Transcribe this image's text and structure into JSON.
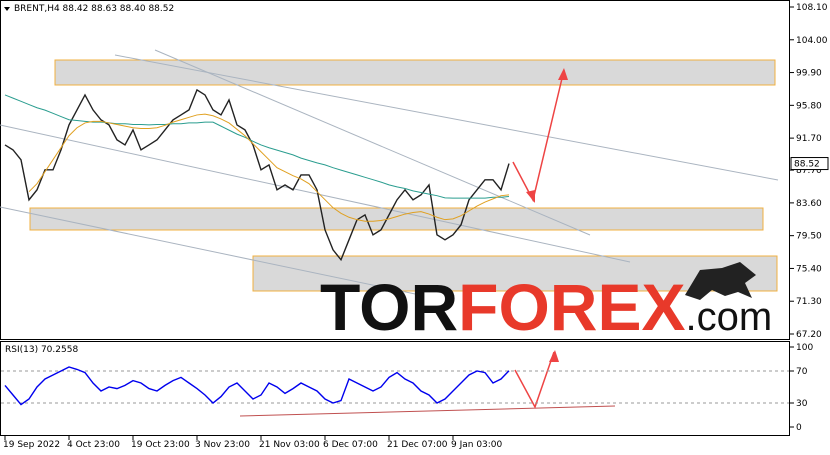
{
  "chart_data": [
    {
      "type": "line",
      "title": "BRENT,H4 88.42 88.63 88.40 88.52",
      "categories": [
        "19 Sep 2022",
        null,
        null,
        null,
        null,
        null,
        null,
        null,
        "4 Oct 23:00",
        null,
        null,
        null,
        null,
        null,
        null,
        null,
        "19 Oct 23:00",
        null,
        null,
        null,
        null,
        null,
        null,
        null,
        "3 Nov 23:00",
        null,
        null,
        null,
        null,
        null,
        null,
        null,
        "21 Nov 03:00",
        null,
        null,
        null,
        null,
        null,
        null,
        null,
        "6 Dec 07:00",
        null,
        null,
        null,
        null,
        null,
        null,
        null,
        "21 Dec 07:00",
        null,
        null,
        null,
        null,
        null,
        null,
        null,
        "9 Jan 03:00",
        null,
        null,
        null,
        null,
        null,
        null,
        null
      ],
      "series": [
        {
          "color": "#222222",
          "values": [
            90.85,
            90.23,
            88.98,
            83.98,
            85.23,
            87.73,
            87.73,
            90.23,
            93.35,
            95.23,
            97.1,
            95.23,
            93.98,
            93.35,
            91.48,
            90.85,
            92.73,
            90.23,
            90.85,
            91.48,
            92.73,
            93.98,
            94.6,
            95.23,
            97.73,
            97.1,
            95.23,
            94.6,
            96.48,
            93.35,
            92.73,
            90.85,
            87.73,
            88.35,
            85.23,
            85.85,
            85.23,
            87.1,
            87.1,
            85.23,
            80.23,
            77.73,
            76.48,
            78.98,
            81.48,
            82.1,
            79.6,
            80.23,
            82.1,
            83.98,
            85.23,
            83.98,
            84.6,
            85.85,
            79.6,
            78.98,
            79.6,
            80.85,
            83.98,
            85.23,
            86.48,
            86.48,
            85.23,
            88.52
          ]
        },
        {
          "color": "#2a9d8f",
          "values": [
            97.1,
            96.7,
            96.3,
            95.9,
            95.5,
            95.2,
            94.8,
            94.4,
            94.0,
            93.9,
            93.8,
            93.7,
            93.7,
            93.6,
            93.5,
            93.5,
            93.4,
            93.4,
            93.35,
            93.4,
            93.4,
            93.5,
            93.5,
            93.6,
            93.6,
            93.7,
            93.7,
            93.2,
            92.7,
            92.2,
            91.8,
            91.3,
            90.85,
            90.5,
            90.2,
            89.9,
            89.6,
            89.2,
            88.9,
            88.6,
            88.35,
            88.0,
            87.7,
            87.4,
            87.1,
            86.8,
            86.5,
            86.2,
            85.85,
            85.6,
            85.4,
            85.1,
            84.9,
            84.7,
            84.5,
            84.23,
            84.2,
            84.2,
            84.2,
            84.2,
            84.2,
            84.3,
            84.3,
            84.4
          ]
        },
        {
          "color": "#e0a020",
          "values": [
            null,
            null,
            null,
            85.0,
            86.0,
            87.5,
            89.0,
            90.5,
            92.0,
            93.0,
            93.6,
            93.8,
            93.8,
            93.6,
            93.4,
            93.2,
            93.0,
            92.9,
            92.9,
            93.0,
            93.3,
            93.7,
            94.0,
            94.3,
            94.6,
            94.7,
            94.5,
            94.1,
            93.6,
            92.8,
            92.0,
            91.0,
            90.0,
            89.0,
            88.0,
            87.5,
            87.0,
            86.6,
            86.0,
            85.0,
            84.0,
            83.0,
            82.3,
            81.8,
            81.5,
            81.3,
            81.3,
            81.4,
            81.6,
            81.9,
            82.2,
            82.4,
            82.5,
            82.2,
            81.8,
            81.5,
            81.6,
            82.0,
            82.6,
            83.2,
            83.7,
            84.1,
            84.5,
            84.6
          ]
        }
      ],
      "last_price": 88.52,
      "ylim": [
        67.2,
        108.1
      ],
      "yticks": [
        {
          "value": 67.2,
          "label": "67.20"
        },
        {
          "value": 71.3,
          "label": "71.30"
        },
        {
          "value": 75.4,
          "label": "75.40"
        },
        {
          "value": 79.5,
          "label": "79.50"
        },
        {
          "value": 83.6,
          "label": "83.60"
        },
        {
          "value": 87.7,
          "label": "87.70"
        },
        {
          "value": 91.7,
          "label": "91.70"
        },
        {
          "value": 95.8,
          "label": "95.80"
        },
        {
          "value": 99.9,
          "label": "99.90"
        },
        {
          "value": 104.0,
          "label": "104.00"
        },
        {
          "value": 108.1,
          "label": "108.10"
        }
      ],
      "watermark": [
        "TOR",
        "FOREX",
        ".com"
      ]
    },
    {
      "type": "line",
      "title": "RSI(13) 70.2558",
      "series": [
        {
          "color": "#0000ee",
          "values": [
            52,
            40,
            28,
            35,
            50,
            60,
            65,
            70,
            75,
            72,
            68,
            55,
            45,
            50,
            48,
            52,
            58,
            55,
            48,
            45,
            52,
            58,
            62,
            55,
            48,
            40,
            30,
            38,
            50,
            55,
            45,
            35,
            40,
            55,
            50,
            42,
            48,
            55,
            50,
            45,
            35,
            30,
            33,
            60,
            55,
            50,
            45,
            50,
            62,
            68,
            60,
            55,
            45,
            40,
            30,
            35,
            45,
            55,
            65,
            70,
            68,
            55,
            60,
            70.2558
          ]
        }
      ],
      "ylim": [
        0,
        100
      ],
      "yticks": [
        0,
        30,
        70,
        100
      ]
    }
  ]
}
